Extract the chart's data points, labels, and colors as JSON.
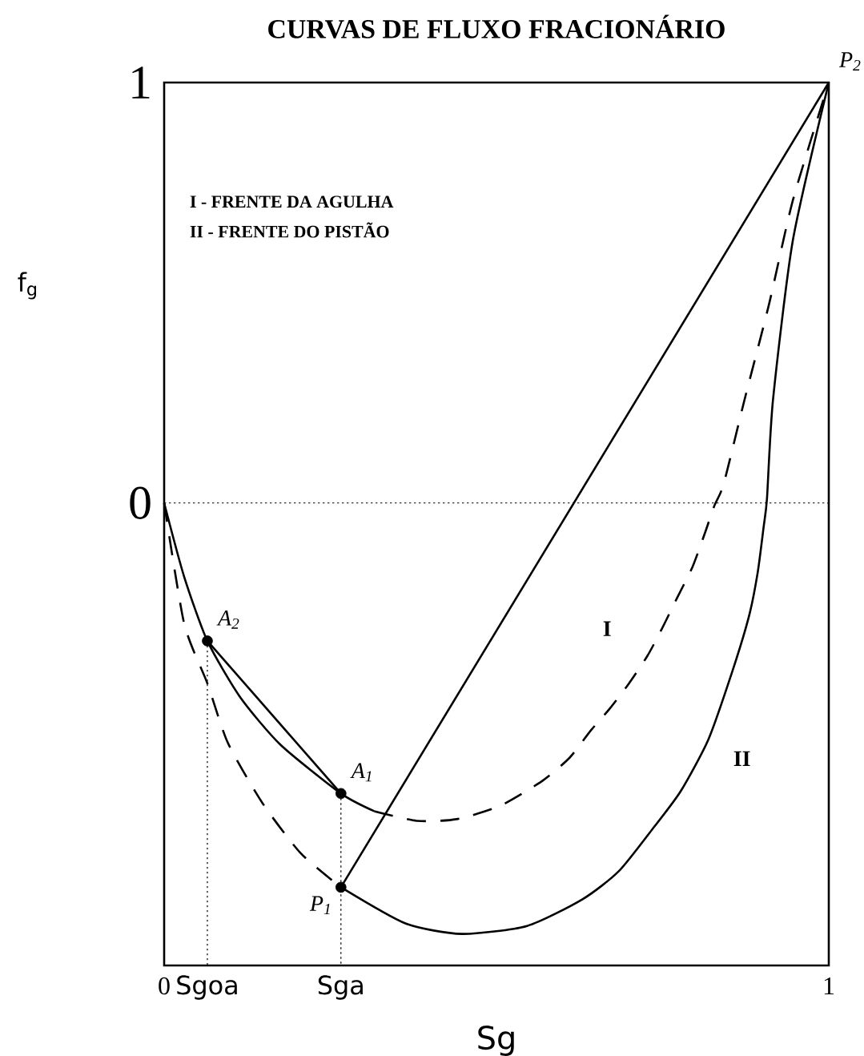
{
  "chart_data": {
    "type": "line",
    "title": "CURVAS DE FLUXO FRACIONÁRIO",
    "xlabel": "Sg",
    "ylabel": "f$_{g}$",
    "xlim": [
      0,
      1
    ],
    "ylim": [
      -1.1,
      1
    ],
    "xticks": [
      0,
      {
        "value": 0.065,
        "label": "Sgoa"
      },
      {
        "value": 0.266,
        "label": "Sga"
      },
      1
    ],
    "yticks": [
      0,
      1
    ],
    "ref_lines": [
      {
        "axis": "y",
        "value": 0,
        "line_style": "dotted",
        "color": "#000000"
      }
    ],
    "series": [
      {
        "line_style": "solid",
        "color": "#000000",
        "x": [
          0,
          0.03,
          0.065,
          0.114,
          0.175,
          0.266,
          0.316
        ],
        "values": [
          0,
          -0.175,
          -0.328,
          -0.461,
          -0.575,
          -0.691,
          -0.733
        ]
      },
      {
        "name": "I",
        "line_style": "dashed",
        "color": "#000000",
        "x": [
          0.316,
          0.38,
          0.44,
          0.506,
          0.569,
          0.61,
          0.642,
          0.67,
          0.699,
          0.727,
          0.749,
          0.772,
          0.795,
          0.814,
          0.828,
          0.842,
          0.873,
          0.91,
          0.946,
          1
        ],
        "values": [
          -0.733,
          -0.756,
          -0.752,
          -0.72,
          -0.661,
          -0.606,
          -0.541,
          -0.49,
          -0.43,
          -0.364,
          -0.299,
          -0.225,
          -0.152,
          -0.07,
          -0.006,
          0.046,
          0.244,
          0.472,
          0.72,
          1
        ]
      },
      {
        "line_style": "dashed",
        "color": "#000000",
        "x": [
          0,
          0.03,
          0.065,
          0.096,
          0.148,
          0.206,
          0.266
        ],
        "values": [
          0,
          -0.286,
          -0.429,
          -0.571,
          -0.714,
          -0.834,
          -0.914
        ]
      },
      {
        "name": "II",
        "line_style": "solid",
        "color": "#000000",
        "x": [
          0.266,
          0.363,
          0.448,
          0.546,
          0.629,
          0.684,
          0.735,
          0.777,
          0.819,
          0.855,
          0.88,
          0.893,
          0.902,
          0.907,
          0.916,
          0.946,
          1
        ],
        "values": [
          -0.914,
          -1.0,
          -1.025,
          -1.006,
          -0.943,
          -0.876,
          -0.775,
          -0.686,
          -0.562,
          -0.4,
          -0.269,
          -0.166,
          -0.057,
          0.01,
          0.244,
          0.625,
          1
        ]
      },
      {
        "line_style": "solid",
        "color": "#000000",
        "x": [
          0.065,
          0.266
        ],
        "values": [
          -0.328,
          -0.691
        ]
      },
      {
        "line_style": "solid",
        "color": "#000000",
        "x": [
          0.266,
          1
        ],
        "values": [
          -0.914,
          1
        ]
      },
      {
        "line_style": "dotted",
        "color": "#000000",
        "x": [
          0.065,
          0.065
        ],
        "values": [
          -0.328,
          -1.1
        ]
      },
      {
        "line_style": "dotted",
        "color": "#000000",
        "x": [
          0.266,
          0.266
        ],
        "values": [
          -0.691,
          -1.1
        ]
      },
      {
        "type": "scatter",
        "marker": "circle",
        "color": "#000000",
        "x": [
          0.065,
          0.266,
          0.266
        ],
        "values": [
          -0.328,
          -0.691,
          -0.914
        ]
      }
    ],
    "annotations": [
      "I - FRENTE DA AGULHA",
      "II - FRENTE DO PISTÃO",
      {
        "text": "*A*$_{2}$",
        "x": 0.065,
        "y": -0.328
      },
      {
        "text": "*A*$_{1}$",
        "x": 0.266,
        "y": -0.691
      },
      {
        "text": "*P*$_{1}$",
        "x": 0.266,
        "y": -0.914
      },
      {
        "text": "*P*$_{2}$",
        "x": 1,
        "y": 1
      }
    ]
  }
}
